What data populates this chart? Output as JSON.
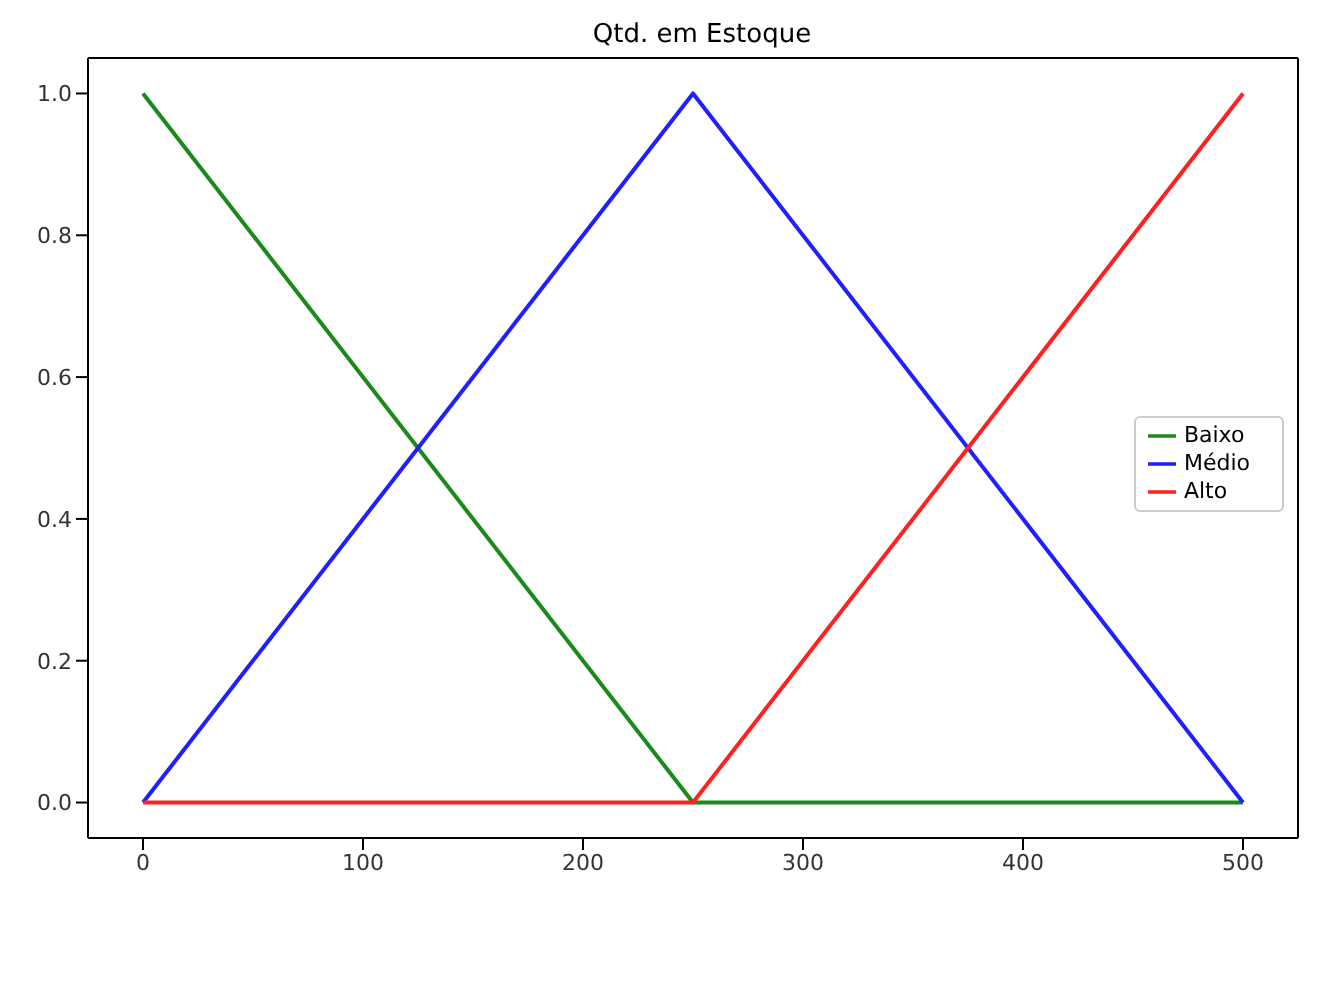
{
  "chart_data": {
    "type": "line",
    "title": "Qtd. em Estoque",
    "x": [
      0,
      250,
      500
    ],
    "series": [
      {
        "name": "Baixo",
        "color": "#1a8a1a",
        "values": [
          1,
          0,
          0
        ]
      },
      {
        "name": "Médio",
        "color": "#1f1fff",
        "values": [
          0,
          1,
          0
        ]
      },
      {
        "name": "Alto",
        "color": "#ff2020",
        "values": [
          0,
          0,
          1
        ]
      }
    ],
    "xlim": [
      -25,
      525
    ],
    "xticks": [
      0,
      100,
      200,
      300,
      400,
      500
    ],
    "ylim": [
      -0.05,
      1.05
    ],
    "yticks": [
      {
        "value": 0,
        "label": "0.0"
      },
      0.2,
      0.4,
      0.6,
      0.8,
      {
        "value": 1,
        "label": "1.0"
      }
    ],
    "legend": "right",
    "grid": false,
    "marker": "none",
    "line_style": "solid"
  }
}
